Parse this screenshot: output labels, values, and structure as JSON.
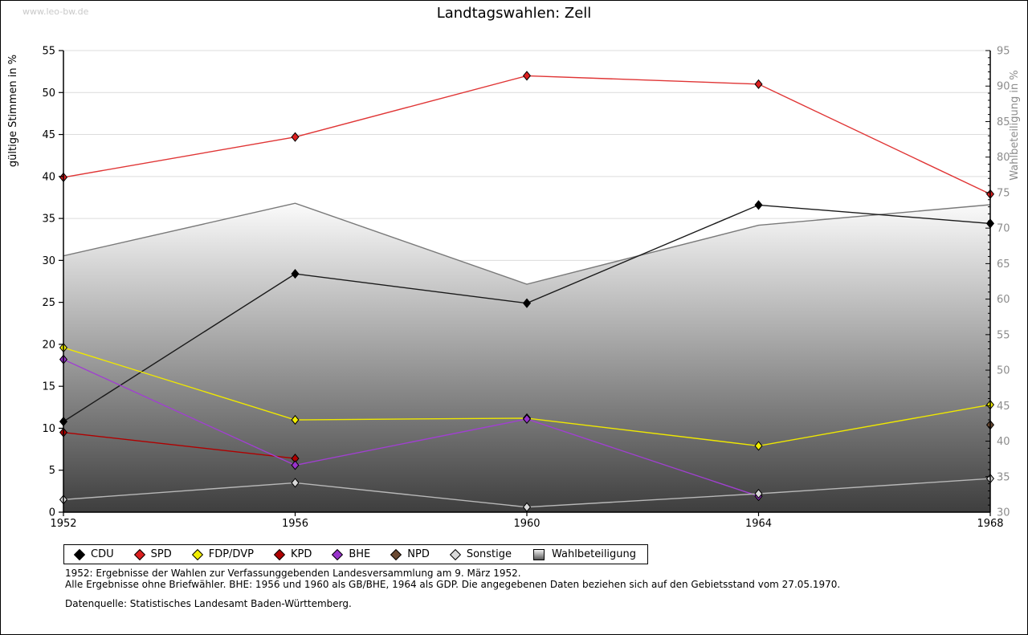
{
  "page": {
    "watermark": "www.leo-bw.de",
    "title": "Landtagswahlen: Zell"
  },
  "chart_data": {
    "type": "line",
    "title": "Landtagswahlen: Zell",
    "x": [
      "1952",
      "1956",
      "1960",
      "1964",
      "1968"
    ],
    "left_axis": {
      "label": "gültige Stimmen in %",
      "min": 0,
      "max": 55,
      "tick_step": 5
    },
    "right_axis": {
      "label": "Wahlbeteiligung in %",
      "min": 30,
      "max": 95,
      "tick_step": 5,
      "minor_step": 1
    },
    "grid": true,
    "legend_position": "bottom",
    "series": [
      {
        "name": "CDU",
        "color": "#000000",
        "line_color": "#1a1a1a",
        "values": [
          10.8,
          28.4,
          24.9,
          36.6,
          34.4
        ]
      },
      {
        "name": "SPD",
        "color": "#dd1f1f",
        "line_color": "#e03535",
        "values": [
          39.9,
          44.7,
          52.0,
          51.0,
          37.9
        ]
      },
      {
        "name": "FDP/DVP",
        "color": "#f2ee00",
        "line_color": "#efe800",
        "values": [
          19.6,
          11.0,
          11.2,
          7.9,
          12.8
        ]
      },
      {
        "name": "KPD",
        "color": "#b00000",
        "line_color": "#b00000",
        "values": [
          9.5,
          6.4,
          null,
          null,
          null
        ]
      },
      {
        "name": "BHE",
        "color": "#9933cc",
        "line_color": "#a040d0",
        "values": [
          18.2,
          5.6,
          11.1,
          1.9,
          null
        ]
      },
      {
        "name": "NPD",
        "color": "#6b4a33",
        "line_color": "#6b4a33",
        "values": [
          null,
          null,
          null,
          null,
          10.4
        ]
      },
      {
        "name": "Sonstige",
        "color": "#d9d9d9",
        "line_color": "#b8b8b8",
        "values": [
          1.5,
          3.5,
          0.6,
          2.2,
          4.0
        ]
      }
    ],
    "area_series": {
      "name": "Wahlbeteiligung",
      "axis": "right",
      "values": [
        66.1,
        73.5,
        62.1,
        70.4,
        73.3
      ],
      "outline": "#7a7a7a",
      "fill_top": "#fbfbfb",
      "fill_bottom": "#3e3e3e"
    },
    "colors": {
      "gridline": "#dcdcdc",
      "axis": "#000000",
      "right_axis_text": "#8c8c8c"
    }
  },
  "footnotes": {
    "line1": "1952: Ergebnisse der Wahlen zur Verfassunggebenden Landesversammlung am 9. März 1952.",
    "line2": "Alle Ergebnisse ohne Briefwähler. BHE: 1956 und 1960 als GB/BHE, 1964 als GDP. Die angegebenen Daten beziehen sich auf den Gebietsstand vom 27.05.1970.",
    "source": "Datenquelle: Statistisches Landesamt Baden-Württemberg."
  }
}
